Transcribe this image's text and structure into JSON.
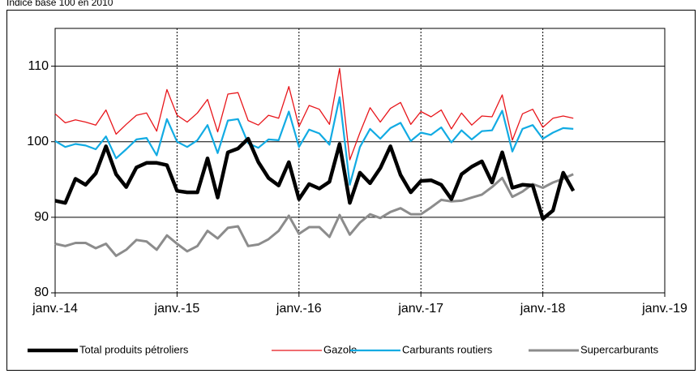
{
  "chart_data": {
    "type": "line",
    "title": "Indice base 100 en 2010",
    "x": [
      "2014-01",
      "2014-02",
      "2014-03",
      "2014-04",
      "2014-05",
      "2014-06",
      "2014-07",
      "2014-08",
      "2014-09",
      "2014-10",
      "2014-11",
      "2014-12",
      "2015-01",
      "2015-02",
      "2015-03",
      "2015-04",
      "2015-05",
      "2015-06",
      "2015-07",
      "2015-08",
      "2015-09",
      "2015-10",
      "2015-11",
      "2015-12",
      "2016-01",
      "2016-02",
      "2016-03",
      "2016-04",
      "2016-05",
      "2016-06",
      "2016-07",
      "2016-08",
      "2016-09",
      "2016-10",
      "2016-11",
      "2016-12",
      "2017-01",
      "2017-02",
      "2017-03",
      "2017-04",
      "2017-05",
      "2017-06",
      "2017-07",
      "2017-08",
      "2017-09",
      "2017-10",
      "2017-11",
      "2017-12",
      "2018-01",
      "2018-02",
      "2018-03",
      "2018-04"
    ],
    "xlim": [
      "2014-01",
      "2019-01"
    ],
    "xticks": [
      {
        "value": "2014-01",
        "label": "janv.-14"
      },
      {
        "value": "2015-01",
        "label": "janv.-15"
      },
      {
        "value": "2016-01",
        "label": "janv.-16"
      },
      {
        "value": "2017-01",
        "label": "janv.-17"
      },
      {
        "value": "2018-01",
        "label": "janv.-18"
      },
      {
        "value": "2019-01",
        "label": "janv.-19"
      }
    ],
    "ylim": [
      80,
      115
    ],
    "yticks": [
      80,
      90,
      100,
      110
    ],
    "grid": true,
    "legend": "bottom",
    "series": [
      {
        "name": "Total produits pétroliers",
        "color": "#000000",
        "values": [
          92.2,
          91.9,
          95.1,
          94.3,
          95.8,
          99.4,
          95.7,
          94.0,
          96.6,
          97.2,
          97.2,
          96.9,
          93.5,
          93.3,
          93.3,
          97.8,
          92.6,
          98.6,
          99.1,
          100.4,
          97.3,
          95.2,
          94.2,
          97.3,
          92.4,
          94.4,
          93.8,
          94.7,
          99.7,
          91.9,
          95.9,
          94.5,
          96.5,
          99.4,
          95.6,
          93.3,
          94.8,
          94.9,
          94.3,
          92.4,
          95.7,
          96.7,
          97.4,
          94.6,
          98.6,
          93.9,
          94.3,
          94.2,
          89.8,
          90.9,
          95.9,
          93.5
        ]
      },
      {
        "name": "Gazole",
        "color": "#e8161b",
        "values": [
          103.7,
          102.5,
          102.9,
          102.6,
          102.2,
          104.2,
          101.0,
          102.3,
          103.5,
          103.8,
          101.4,
          106.9,
          103.5,
          102.6,
          103.8,
          105.6,
          101.3,
          106.3,
          106.5,
          102.8,
          102.2,
          103.5,
          103.1,
          107.3,
          102.0,
          104.8,
          104.3,
          102.3,
          109.7,
          97.6,
          101.2,
          104.5,
          102.6,
          104.4,
          105.2,
          102.3,
          104.0,
          103.3,
          104.2,
          101.7,
          103.8,
          102.2,
          103.4,
          103.3,
          106.2,
          100.2,
          103.7,
          104.3,
          101.9,
          103.1,
          103.4,
          103.1
        ]
      },
      {
        "name": "Carburants routiers",
        "color": "#12abe3",
        "values": [
          100.1,
          99.3,
          99.7,
          99.5,
          99.0,
          100.7,
          97.8,
          99.0,
          100.3,
          100.5,
          98.2,
          103.0,
          100.0,
          99.3,
          100.2,
          102.2,
          98.5,
          102.8,
          103.0,
          99.8,
          99.2,
          100.3,
          100.2,
          104.0,
          99.3,
          101.6,
          101.1,
          99.6,
          105.9,
          94.3,
          99.3,
          101.7,
          100.4,
          101.8,
          102.5,
          100.1,
          101.2,
          100.9,
          101.9,
          99.9,
          101.5,
          100.3,
          101.4,
          101.5,
          104.1,
          98.7,
          101.7,
          102.2,
          100.4,
          101.2,
          101.8,
          101.7
        ]
      },
      {
        "name": "Supercarburants",
        "color": "#8c8c8c",
        "values": [
          86.5,
          86.2,
          86.6,
          86.6,
          85.9,
          86.5,
          84.9,
          85.7,
          87.0,
          86.8,
          85.7,
          87.6,
          86.5,
          85.5,
          86.2,
          88.2,
          87.2,
          88.6,
          88.8,
          86.2,
          86.4,
          87.1,
          88.2,
          90.2,
          87.8,
          88.7,
          88.7,
          87.4,
          90.3,
          87.7,
          89.3,
          90.4,
          89.9,
          90.7,
          91.2,
          90.4,
          90.4,
          91.3,
          92.3,
          92.1,
          92.2,
          92.6,
          93.0,
          94.0,
          95.2,
          92.7,
          93.4,
          94.4,
          93.9,
          94.6,
          95.1,
          95.7
        ]
      }
    ]
  }
}
